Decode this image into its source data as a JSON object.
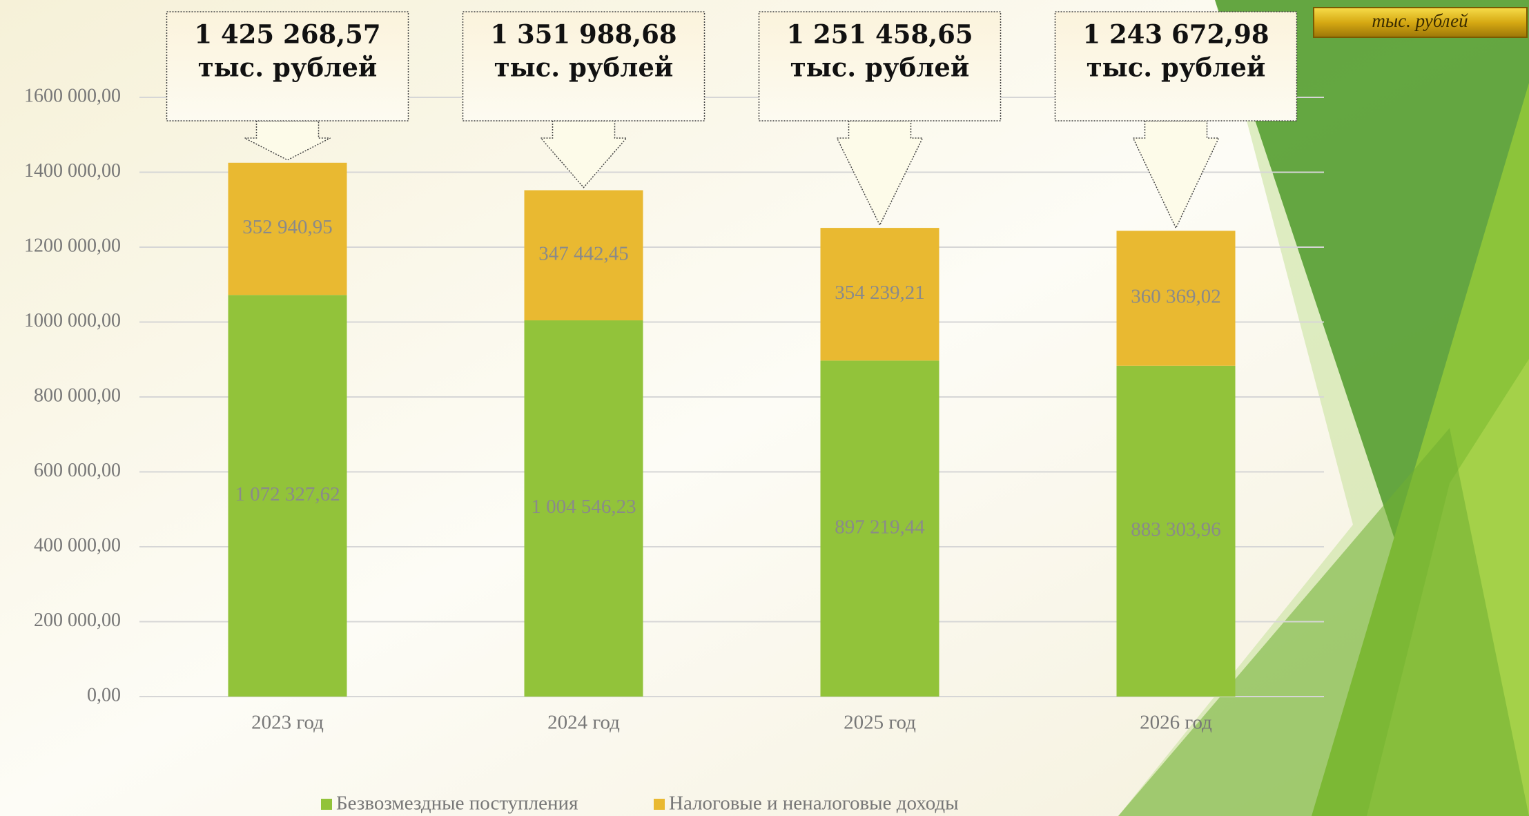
{
  "chart_data": {
    "type": "stacked_bar",
    "categories": [
      "2023 год",
      "2024 год",
      "2025 год",
      "2026 год"
    ],
    "series": [
      {
        "name": "Безвозмездные поступления",
        "color": "#92c33a",
        "values": [
          1072327.62,
          1004546.23,
          897219.44,
          883303.96
        ],
        "value_labels": [
          "1 072 327,62",
          "1 004 546,23",
          "897 219,44",
          "883 303,96"
        ]
      },
      {
        "name": "Налоговые и неналоговые доходы",
        "color": "#e9b931",
        "values": [
          352940.95,
          347442.45,
          354239.21,
          360369.02
        ],
        "value_labels": [
          "352 940,95",
          "347 442,45",
          "354 239,21",
          "360 369,02"
        ]
      }
    ],
    "totals": [
      1425268.57,
      1351988.68,
      1251458.65,
      1243672.98
    ],
    "total_labels": [
      "1 425 268,57",
      "1 351 988,68",
      "1 251 458,65",
      "1 243 672,98"
    ],
    "units": "тыс. рублей",
    "ylim": [
      0,
      1600000
    ],
    "yticks": [
      {
        "value": 0,
        "label": "0,00"
      },
      {
        "value": 200000,
        "label": "200 000,00"
      },
      {
        "value": 400000,
        "label": "400 000,00"
      },
      {
        "value": 600000,
        "label": "600 000,00"
      },
      {
        "value": 800000,
        "label": "800 000,00"
      },
      {
        "value": 1000000,
        "label": "1000 000,00"
      },
      {
        "value": 1200000,
        "label": "1200 000,00"
      },
      {
        "value": 1400000,
        "label": "1400 000,00"
      },
      {
        "value": 1600000,
        "label": "1600 000,00"
      }
    ],
    "grid": true,
    "legend": "bottom"
  }
}
